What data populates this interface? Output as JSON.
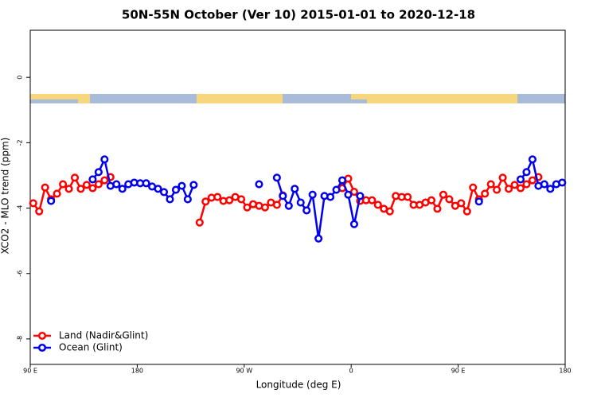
{
  "chart_data": {
    "type": "line",
    "title": "50N-55N October (Ver 10)   2015-01-01 to 2020-12-18",
    "x_label": "Longitude (deg E)",
    "y_label": "XCO2 - MLO trend (ppm)",
    "x": [
      92.5,
      97.5,
      102.5,
      107.5,
      112.5,
      117.5,
      122.5,
      127.5,
      132.5,
      137.5,
      142.5,
      147.5,
      152.5,
      157.5,
      162.5,
      167.5,
      172.5,
      177.5,
      182.5,
      187.5,
      192.5,
      197.5,
      202.5,
      207.5,
      212.5,
      217.5,
      222.5,
      227.5,
      232.5,
      237.5,
      242.5,
      247.5,
      252.5,
      257.5,
      262.5,
      267.5,
      272.5,
      277.5,
      282.5,
      287.5,
      292.5,
      297.5,
      302.5,
      307.5,
      312.5,
      317.5,
      322.5,
      327.5,
      332.5,
      337.5,
      342.5,
      347.5,
      352.5,
      357.5,
      362.5,
      367.5,
      372.5,
      377.5,
      382.5,
      387.5,
      392.5,
      397.5,
      402.5,
      407.5,
      412.5,
      417.5,
      422.5,
      427.5,
      432.5,
      437.5,
      442.5,
      447.5,
      452.5,
      457.5,
      462.5,
      467.5,
      472.5,
      477.5,
      482.5,
      487.5,
      492.5,
      497.5,
      502.5,
      507.5,
      512.5,
      517.5,
      522.5,
      527.5,
      532.5,
      537.5
    ],
    "series": [
      {
        "name": "Land (Nadir&Glint)",
        "color": "#ff0000",
        "values": [
          -3.85,
          -4.1,
          -3.37,
          -3.73,
          -3.56,
          -3.27,
          -3.41,
          -3.07,
          -3.41,
          -3.29,
          -3.39,
          -3.27,
          -3.15,
          -3.05,
          null,
          null,
          null,
          null,
          null,
          null,
          null,
          null,
          null,
          null,
          null,
          null,
          null,
          null,
          -4.44,
          -3.8,
          -3.68,
          -3.66,
          -3.78,
          -3.76,
          -3.66,
          -3.73,
          -3.98,
          -3.88,
          -3.93,
          -3.98,
          -3.83,
          -3.9,
          -3.61,
          null,
          null,
          null,
          null,
          null,
          null,
          null,
          null,
          null,
          -3.39,
          -3.1,
          -3.5,
          -3.78,
          -3.76,
          -3.76,
          -3.9,
          -4.02,
          -4.1,
          -3.63,
          -3.66,
          -3.66,
          -3.9,
          -3.9,
          -3.83,
          -3.76,
          -4.02,
          -3.59,
          -3.73,
          -3.93,
          -3.85,
          -4.1,
          -3.37,
          -3.73,
          -3.56,
          -3.27,
          -3.44,
          -3.07,
          -3.41,
          -3.29,
          -3.39,
          -3.27,
          -3.15,
          -3.05,
          null,
          null,
          null,
          null
        ]
      },
      {
        "name": "Ocean (Glint)",
        "color": "#0000ee",
        "values": [
          null,
          null,
          null,
          -3.78,
          null,
          null,
          null,
          null,
          null,
          null,
          -3.12,
          -2.9,
          -2.51,
          -3.32,
          -3.27,
          -3.41,
          -3.27,
          -3.22,
          -3.24,
          -3.24,
          -3.34,
          -3.41,
          -3.51,
          -3.73,
          -3.44,
          -3.32,
          -3.73,
          -3.29,
          null,
          null,
          null,
          null,
          null,
          null,
          null,
          null,
          null,
          null,
          -3.27,
          null,
          null,
          -3.07,
          -3.63,
          -3.93,
          -3.41,
          -3.83,
          -4.07,
          -3.59,
          -4.93,
          -3.63,
          -3.66,
          -3.44,
          -3.15,
          -3.59,
          -4.49,
          -3.63,
          null,
          null,
          null,
          null,
          null,
          null,
          null,
          null,
          null,
          null,
          null,
          null,
          null,
          null,
          null,
          null,
          null,
          null,
          null,
          -3.8,
          null,
          null,
          null,
          null,
          null,
          null,
          -3.12,
          -2.9,
          -2.51,
          -3.32,
          -3.27,
          -3.41,
          -3.27,
          -3.22
        ]
      }
    ],
    "xlim": [
      90,
      540
    ],
    "xticks": [
      {
        "value": 90,
        "label": "90 E"
      },
      {
        "value": 180,
        "label": "180"
      },
      {
        "value": 270,
        "label": "90 W"
      },
      {
        "value": 360,
        "label": "0"
      },
      {
        "value": 450,
        "label": "90 E"
      },
      {
        "value": 540,
        "label": "180"
      }
    ],
    "ylim": [
      -8.78,
      1.44
    ],
    "yticks": [
      0,
      -2,
      -4,
      -6,
      -8
    ],
    "legend": "bottom-left"
  }
}
